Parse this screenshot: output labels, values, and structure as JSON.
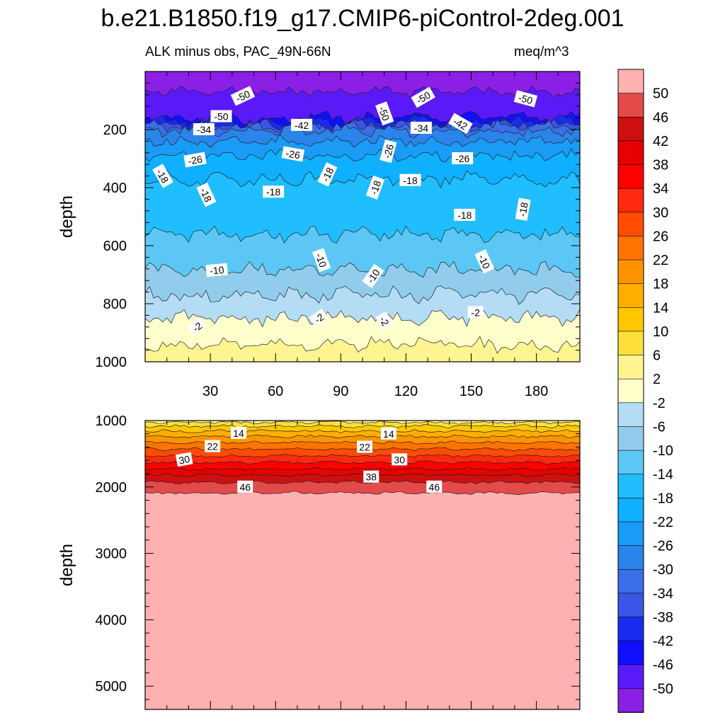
{
  "page_title": "b.e21.B1850.f19_g17.CMIP6-piControl-2deg.001",
  "colors": {
    "palette": [
      "#8B1FE6",
      "#5A1AF7",
      "#1010FF",
      "#1A2BF0",
      "#3B55E6",
      "#3B6EE8",
      "#2B84EA",
      "#1A9BF5",
      "#0FB0FF",
      "#21BEFF",
      "#5CC7F5",
      "#92CCEC",
      "#B4DDF5",
      "#FFFFCC",
      "#FFF490",
      "#FFDF3A",
      "#FFC700",
      "#FFAE00",
      "#FF9400",
      "#FF7300",
      "#FF4C00",
      "#FF2A10",
      "#FF0000",
      "#E60000",
      "#CC1010",
      "#E34A4A",
      "#FFB0B0"
    ],
    "contour_line": "#222222"
  },
  "chart_data": [
    {
      "type": "contour",
      "panel": "upper",
      "title_left": "ALK minus obs, PAC_49N-66N",
      "title_right": "meq/m^3",
      "xlabel": "",
      "ylabel": "depth",
      "xlim": [
        0,
        200
      ],
      "ylim": [
        1000,
        0
      ],
      "xticks": [
        30,
        60,
        90,
        120,
        150,
        180
      ],
      "yticks": [
        200,
        400,
        600,
        800,
        1000
      ],
      "bands": [
        {
          "level": -54,
          "bottom": 70
        },
        {
          "level": -50,
          "bottom": 160
        },
        {
          "level": -46,
          "bottom": 172
        },
        {
          "level": -42,
          "bottom": 182
        },
        {
          "level": -38,
          "bottom": 190
        },
        {
          "level": -34,
          "bottom": 205
        },
        {
          "level": -30,
          "bottom": 240
        },
        {
          "level": -26,
          "bottom": 290
        },
        {
          "level": -22,
          "bottom": 370
        },
        {
          "level": -18,
          "bottom": 560
        },
        {
          "level": -14,
          "bottom": 680
        },
        {
          "level": -10,
          "bottom": 770
        },
        {
          "level": -6,
          "bottom": 850
        },
        {
          "level": -2,
          "bottom": 940
        },
        {
          "level": 2,
          "bottom": 1000
        }
      ],
      "contour_labels": [
        {
          "text": "-50",
          "x": 45,
          "y": 85,
          "angle": -25
        },
        {
          "text": "-50",
          "x": 35,
          "y": 155,
          "angle": 0
        },
        {
          "text": "-50",
          "x": 110,
          "y": 145,
          "angle": 70
        },
        {
          "text": "-50",
          "x": 128,
          "y": 90,
          "angle": -30
        },
        {
          "text": "-50",
          "x": 175,
          "y": 95,
          "angle": 15
        },
        {
          "text": "-42",
          "x": 72,
          "y": 185,
          "angle": 0
        },
        {
          "text": "-42",
          "x": 145,
          "y": 180,
          "angle": 30
        },
        {
          "text": "-34",
          "x": 27,
          "y": 200,
          "angle": 0
        },
        {
          "text": "-34",
          "x": 127,
          "y": 195,
          "angle": 0
        },
        {
          "text": "-26",
          "x": 23,
          "y": 305,
          "angle": -10
        },
        {
          "text": "-26",
          "x": 68,
          "y": 285,
          "angle": 10
        },
        {
          "text": "-26",
          "x": 112,
          "y": 275,
          "angle": -75
        },
        {
          "text": "-26",
          "x": 146,
          "y": 300,
          "angle": 0
        },
        {
          "text": "-18",
          "x": 8,
          "y": 360,
          "angle": 60
        },
        {
          "text": "-18",
          "x": 28,
          "y": 425,
          "angle": 65
        },
        {
          "text": "-18",
          "x": 59,
          "y": 415,
          "angle": 0
        },
        {
          "text": "-18",
          "x": 84,
          "y": 355,
          "angle": -65
        },
        {
          "text": "-18",
          "x": 106,
          "y": 400,
          "angle": -70
        },
        {
          "text": "-18",
          "x": 122,
          "y": 375,
          "angle": 0
        },
        {
          "text": "-18",
          "x": 147,
          "y": 495,
          "angle": 0
        },
        {
          "text": "-18",
          "x": 174,
          "y": 475,
          "angle": -80
        },
        {
          "text": "-10",
          "x": 33,
          "y": 685,
          "angle": -5
        },
        {
          "text": "-10",
          "x": 81,
          "y": 650,
          "angle": 70
        },
        {
          "text": "-10",
          "x": 105,
          "y": 705,
          "angle": -55
        },
        {
          "text": "-10",
          "x": 156,
          "y": 655,
          "angle": 65
        },
        {
          "text": "-2",
          "x": 24,
          "y": 880,
          "angle": -35
        },
        {
          "text": "-2",
          "x": 80,
          "y": 850,
          "angle": -35
        },
        {
          "text": "-2",
          "x": 110,
          "y": 860,
          "angle": 60
        },
        {
          "text": "-2",
          "x": 152,
          "y": 830,
          "angle": 0
        }
      ]
    },
    {
      "type": "contour",
      "panel": "lower",
      "xlabel": "",
      "ylabel": "depth",
      "xlim": [
        0,
        200
      ],
      "ylim": [
        5350,
        1000
      ],
      "yticks": [
        1000,
        2000,
        3000,
        4000,
        5000
      ],
      "bands": [
        {
          "level": 2,
          "bottom": 1030
        },
        {
          "level": 6,
          "bottom": 1085
        },
        {
          "level": 10,
          "bottom": 1160
        },
        {
          "level": 14,
          "bottom": 1240
        },
        {
          "level": 18,
          "bottom": 1330
        },
        {
          "level": 22,
          "bottom": 1430
        },
        {
          "level": 26,
          "bottom": 1530
        },
        {
          "level": 30,
          "bottom": 1630
        },
        {
          "level": 34,
          "bottom": 1730
        },
        {
          "level": 38,
          "bottom": 1820
        },
        {
          "level": 42,
          "bottom": 1930
        },
        {
          "level": 46,
          "bottom": 2090
        },
        {
          "level": 50,
          "bottom": 5350
        }
      ],
      "contour_labels": [
        {
          "text": "14",
          "x": 43,
          "y": 1190,
          "angle": 0
        },
        {
          "text": "14",
          "x": 112,
          "y": 1200,
          "angle": 0
        },
        {
          "text": "22",
          "x": 31,
          "y": 1390,
          "angle": 0
        },
        {
          "text": "22",
          "x": 101,
          "y": 1400,
          "angle": 0
        },
        {
          "text": "30",
          "x": 18,
          "y": 1590,
          "angle": -10
        },
        {
          "text": "30",
          "x": 117,
          "y": 1590,
          "angle": 0
        },
        {
          "text": "38",
          "x": 104,
          "y": 1850,
          "angle": 0
        },
        {
          "text": "46",
          "x": 46,
          "y": 2000,
          "angle": 0
        },
        {
          "text": "46",
          "x": 133,
          "y": 2000,
          "angle": 0
        }
      ]
    }
  ],
  "colorbar": {
    "labels": [
      "50",
      "46",
      "42",
      "38",
      "34",
      "30",
      "26",
      "22",
      "18",
      "14",
      "10",
      "6",
      "2",
      "-2",
      "-6",
      "-10",
      "-14",
      "-18",
      "-22",
      "-26",
      "-30",
      "-34",
      "-38",
      "-42",
      "-46",
      "-50"
    ]
  }
}
